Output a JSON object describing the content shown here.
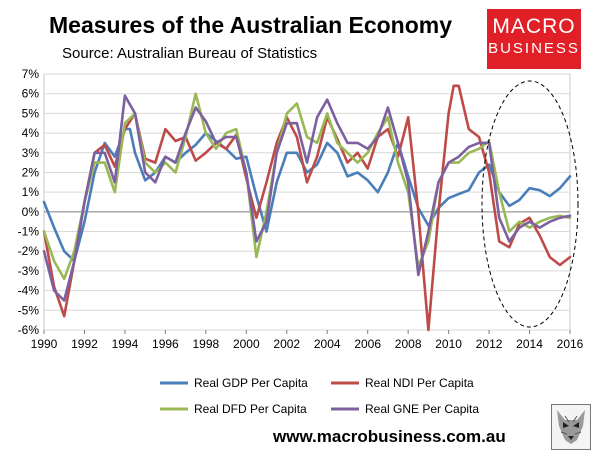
{
  "header": {
    "title": "Measures of the Australian Economy",
    "subtitle": "Source: Australian Bureau of Statistics"
  },
  "logo": {
    "line1": "MACRO",
    "line2": "BUSINESS",
    "color": "#e01f26"
  },
  "footer": {
    "website": "www.macrobusiness.com.au"
  },
  "chart_data": {
    "type": "line",
    "title": "Measures of the Australian Economy",
    "xlabel": "",
    "ylabel": "",
    "xlim": [
      1990,
      2016
    ],
    "ylim": [
      -6,
      7
    ],
    "x_ticks": [
      1990,
      1992,
      1994,
      1996,
      1998,
      2000,
      2002,
      2004,
      2006,
      2008,
      2010,
      2012,
      2014,
      2016
    ],
    "y_ticks": [
      {
        "v": 7,
        "label": "7%"
      },
      {
        "v": 6,
        "label": "6%"
      },
      {
        "v": 5,
        "label": "5%"
      },
      {
        "v": 4,
        "label": "4%"
      },
      {
        "v": 3,
        "label": "3%"
      },
      {
        "v": 2,
        "label": "2%"
      },
      {
        "v": 1,
        "label": "1%"
      },
      {
        "v": 0,
        "label": "0%"
      },
      {
        "v": -1,
        "label": "-1%"
      },
      {
        "v": -2,
        "label": "-2%"
      },
      {
        "v": -3,
        "label": "-3%"
      },
      {
        "v": -4,
        "label": "-4%"
      },
      {
        "v": -5,
        "label": "-5%"
      },
      {
        "v": -6,
        "label": "-6%"
      }
    ],
    "grid": true,
    "legend_position": "bottom",
    "annotation": "dashed ellipse around 2012-2016",
    "series": [
      {
        "name": "Real GDP Per Capita",
        "color": "#4a7ebb",
        "points": [
          [
            1990,
            0.5
          ],
          [
            1990.5,
            -0.8
          ],
          [
            1991,
            -2.0
          ],
          [
            1991.5,
            -2.5
          ],
          [
            1992,
            -0.5
          ],
          [
            1992.5,
            2.0
          ],
          [
            1993,
            3.5
          ],
          [
            1993.5,
            2.8
          ],
          [
            1994,
            4.2
          ],
          [
            1994.25,
            4.2
          ],
          [
            1994.5,
            3.0
          ],
          [
            1995,
            1.6
          ],
          [
            1995.5,
            2.0
          ],
          [
            1996,
            2.8
          ],
          [
            1996.5,
            2.5
          ],
          [
            1997,
            3.0
          ],
          [
            1997.5,
            3.4
          ],
          [
            1998,
            4.0
          ],
          [
            1998.5,
            3.6
          ],
          [
            1999,
            3.2
          ],
          [
            1999.5,
            2.7
          ],
          [
            2000,
            2.8
          ],
          [
            2000.5,
            0.8
          ],
          [
            2001,
            -1.0
          ],
          [
            2001.5,
            1.5
          ],
          [
            2002,
            3.0
          ],
          [
            2002.5,
            3.0
          ],
          [
            2003,
            2.0
          ],
          [
            2003.5,
            2.4
          ],
          [
            2004,
            3.5
          ],
          [
            2004.5,
            3.0
          ],
          [
            2005,
            1.8
          ],
          [
            2005.5,
            2.0
          ],
          [
            2006,
            1.6
          ],
          [
            2006.5,
            1.0
          ],
          [
            2007,
            2.0
          ],
          [
            2007.5,
            3.5
          ],
          [
            2008,
            1.8
          ],
          [
            2008.5,
            0.2
          ],
          [
            2009,
            -0.7
          ],
          [
            2009.5,
            0.2
          ],
          [
            2010,
            0.7
          ],
          [
            2010.5,
            0.9
          ],
          [
            2011,
            1.1
          ],
          [
            2011.5,
            2.0
          ],
          [
            2012,
            2.4
          ],
          [
            2012.5,
            1.0
          ],
          [
            2013,
            0.3
          ],
          [
            2013.5,
            0.6
          ],
          [
            2014,
            1.2
          ],
          [
            2014.5,
            1.1
          ],
          [
            2015,
            0.8
          ],
          [
            2015.5,
            1.2
          ],
          [
            2016,
            1.8
          ]
        ]
      },
      {
        "name": "Real NDI Per Capita",
        "color": "#be4b48",
        "points": [
          [
            1990,
            -1.0
          ],
          [
            1990.5,
            -3.8
          ],
          [
            1991,
            -5.3
          ],
          [
            1991.5,
            -2.5
          ],
          [
            1992,
            0.5
          ],
          [
            1992.5,
            3.0
          ],
          [
            1993,
            3.4
          ],
          [
            1993.5,
            2.3
          ],
          [
            1994,
            4.2
          ],
          [
            1994.5,
            5.0
          ],
          [
            1995,
            2.7
          ],
          [
            1995.5,
            2.5
          ],
          [
            1996,
            4.2
          ],
          [
            1996.5,
            3.6
          ],
          [
            1997,
            3.8
          ],
          [
            1997.5,
            2.6
          ],
          [
            1998,
            3.0
          ],
          [
            1998.5,
            3.5
          ],
          [
            1999,
            3.2
          ],
          [
            1999.5,
            3.9
          ],
          [
            2000,
            1.7
          ],
          [
            2000.5,
            -0.3
          ],
          [
            2001,
            1.5
          ],
          [
            2001.5,
            3.5
          ],
          [
            2002,
            4.8
          ],
          [
            2002.5,
            3.8
          ],
          [
            2003,
            1.5
          ],
          [
            2003.5,
            2.8
          ],
          [
            2004,
            4.8
          ],
          [
            2004.5,
            3.7
          ],
          [
            2005,
            2.5
          ],
          [
            2005.5,
            3.0
          ],
          [
            2006,
            2.2
          ],
          [
            2006.5,
            3.8
          ],
          [
            2007,
            4.2
          ],
          [
            2007.5,
            2.8
          ],
          [
            2008,
            4.8
          ],
          [
            2008.5,
            0.0
          ],
          [
            2009,
            -6.0
          ],
          [
            2009.5,
            0.0
          ],
          [
            2010,
            5.0
          ],
          [
            2010.25,
            6.4
          ],
          [
            2010.5,
            6.4
          ],
          [
            2011,
            4.2
          ],
          [
            2011.5,
            3.8
          ],
          [
            2012,
            2.0
          ],
          [
            2012.5,
            -1.5
          ],
          [
            2013,
            -1.8
          ],
          [
            2013.5,
            -0.6
          ],
          [
            2014,
            -0.3
          ],
          [
            2014.5,
            -1.2
          ],
          [
            2015,
            -2.3
          ],
          [
            2015.5,
            -2.7
          ],
          [
            2016,
            -2.3
          ]
        ]
      },
      {
        "name": "Real DFD Per Capita",
        "color": "#98b954",
        "points": [
          [
            1990,
            -1.0
          ],
          [
            1990.5,
            -2.5
          ],
          [
            1991,
            -3.4
          ],
          [
            1991.5,
            -2.0
          ],
          [
            1992,
            0.5
          ],
          [
            1992.5,
            2.5
          ],
          [
            1993,
            2.5
          ],
          [
            1993.5,
            1.0
          ],
          [
            1994,
            4.5
          ],
          [
            1994.5,
            5.0
          ],
          [
            1995,
            2.5
          ],
          [
            1995.5,
            2.0
          ],
          [
            1996,
            2.5
          ],
          [
            1996.5,
            2.0
          ],
          [
            1997,
            3.8
          ],
          [
            1997.5,
            6.0
          ],
          [
            1998,
            4.0
          ],
          [
            1998.5,
            3.2
          ],
          [
            1999,
            4.0
          ],
          [
            1999.5,
            4.2
          ],
          [
            2000,
            2.0
          ],
          [
            2000.5,
            -2.3
          ],
          [
            2001,
            0.0
          ],
          [
            2001.5,
            3.0
          ],
          [
            2002,
            5.0
          ],
          [
            2002.5,
            5.5
          ],
          [
            2003,
            3.8
          ],
          [
            2003.5,
            3.5
          ],
          [
            2004,
            5.0
          ],
          [
            2004.5,
            3.5
          ],
          [
            2005,
            3.0
          ],
          [
            2005.5,
            2.5
          ],
          [
            2006,
            3.0
          ],
          [
            2006.5,
            4.0
          ],
          [
            2007,
            4.8
          ],
          [
            2007.5,
            2.5
          ],
          [
            2008,
            1.0
          ],
          [
            2008.5,
            -2.8
          ],
          [
            2009,
            -1.5
          ],
          [
            2009.5,
            1.5
          ],
          [
            2010,
            2.5
          ],
          [
            2010.5,
            2.5
          ],
          [
            2011,
            3.0
          ],
          [
            2011.5,
            3.2
          ],
          [
            2012,
            3.6
          ],
          [
            2012.5,
            1.0
          ],
          [
            2013,
            -1.0
          ],
          [
            2013.5,
            -0.5
          ],
          [
            2014,
            -0.8
          ],
          [
            2014.5,
            -0.5
          ],
          [
            2015,
            -0.3
          ],
          [
            2015.5,
            -0.2
          ],
          [
            2016,
            -0.3
          ]
        ]
      },
      {
        "name": "Real GNE Per Capita",
        "color": "#7d60a0",
        "points": [
          [
            1990,
            -2.0
          ],
          [
            1990.5,
            -4.0
          ],
          [
            1991,
            -4.5
          ],
          [
            1991.5,
            -2.5
          ],
          [
            1992,
            0.5
          ],
          [
            1992.5,
            3.0
          ],
          [
            1993,
            3.0
          ],
          [
            1993.5,
            1.5
          ],
          [
            1994,
            5.9
          ],
          [
            1994.5,
            5.0
          ],
          [
            1995,
            2.0
          ],
          [
            1995.5,
            1.5
          ],
          [
            1996,
            2.8
          ],
          [
            1996.5,
            2.5
          ],
          [
            1997,
            4.0
          ],
          [
            1997.5,
            5.3
          ],
          [
            1998,
            4.6
          ],
          [
            1998.5,
            3.5
          ],
          [
            1999,
            3.8
          ],
          [
            1999.5,
            3.8
          ],
          [
            2000,
            2.0
          ],
          [
            2000.5,
            -1.5
          ],
          [
            2001,
            -0.5
          ],
          [
            2001.5,
            3.0
          ],
          [
            2002,
            4.5
          ],
          [
            2002.5,
            4.5
          ],
          [
            2003,
            2.5
          ],
          [
            2003.5,
            4.8
          ],
          [
            2004,
            5.7
          ],
          [
            2004.5,
            4.5
          ],
          [
            2005,
            3.5
          ],
          [
            2005.5,
            3.5
          ],
          [
            2006,
            3.2
          ],
          [
            2006.5,
            3.8
          ],
          [
            2007,
            5.3
          ],
          [
            2007.5,
            3.5
          ],
          [
            2008,
            1.5
          ],
          [
            2008.5,
            -3.2
          ],
          [
            2009,
            -1.0
          ],
          [
            2009.5,
            1.5
          ],
          [
            2010,
            2.5
          ],
          [
            2010.5,
            2.8
          ],
          [
            2011,
            3.3
          ],
          [
            2011.5,
            3.5
          ],
          [
            2012,
            3.5
          ],
          [
            2012.5,
            -0.3
          ],
          [
            2013,
            -1.5
          ],
          [
            2013.5,
            -0.8
          ],
          [
            2014,
            -0.5
          ],
          [
            2014.5,
            -0.8
          ],
          [
            2015,
            -0.5
          ],
          [
            2015.5,
            -0.3
          ],
          [
            2016,
            -0.2
          ]
        ]
      }
    ]
  }
}
